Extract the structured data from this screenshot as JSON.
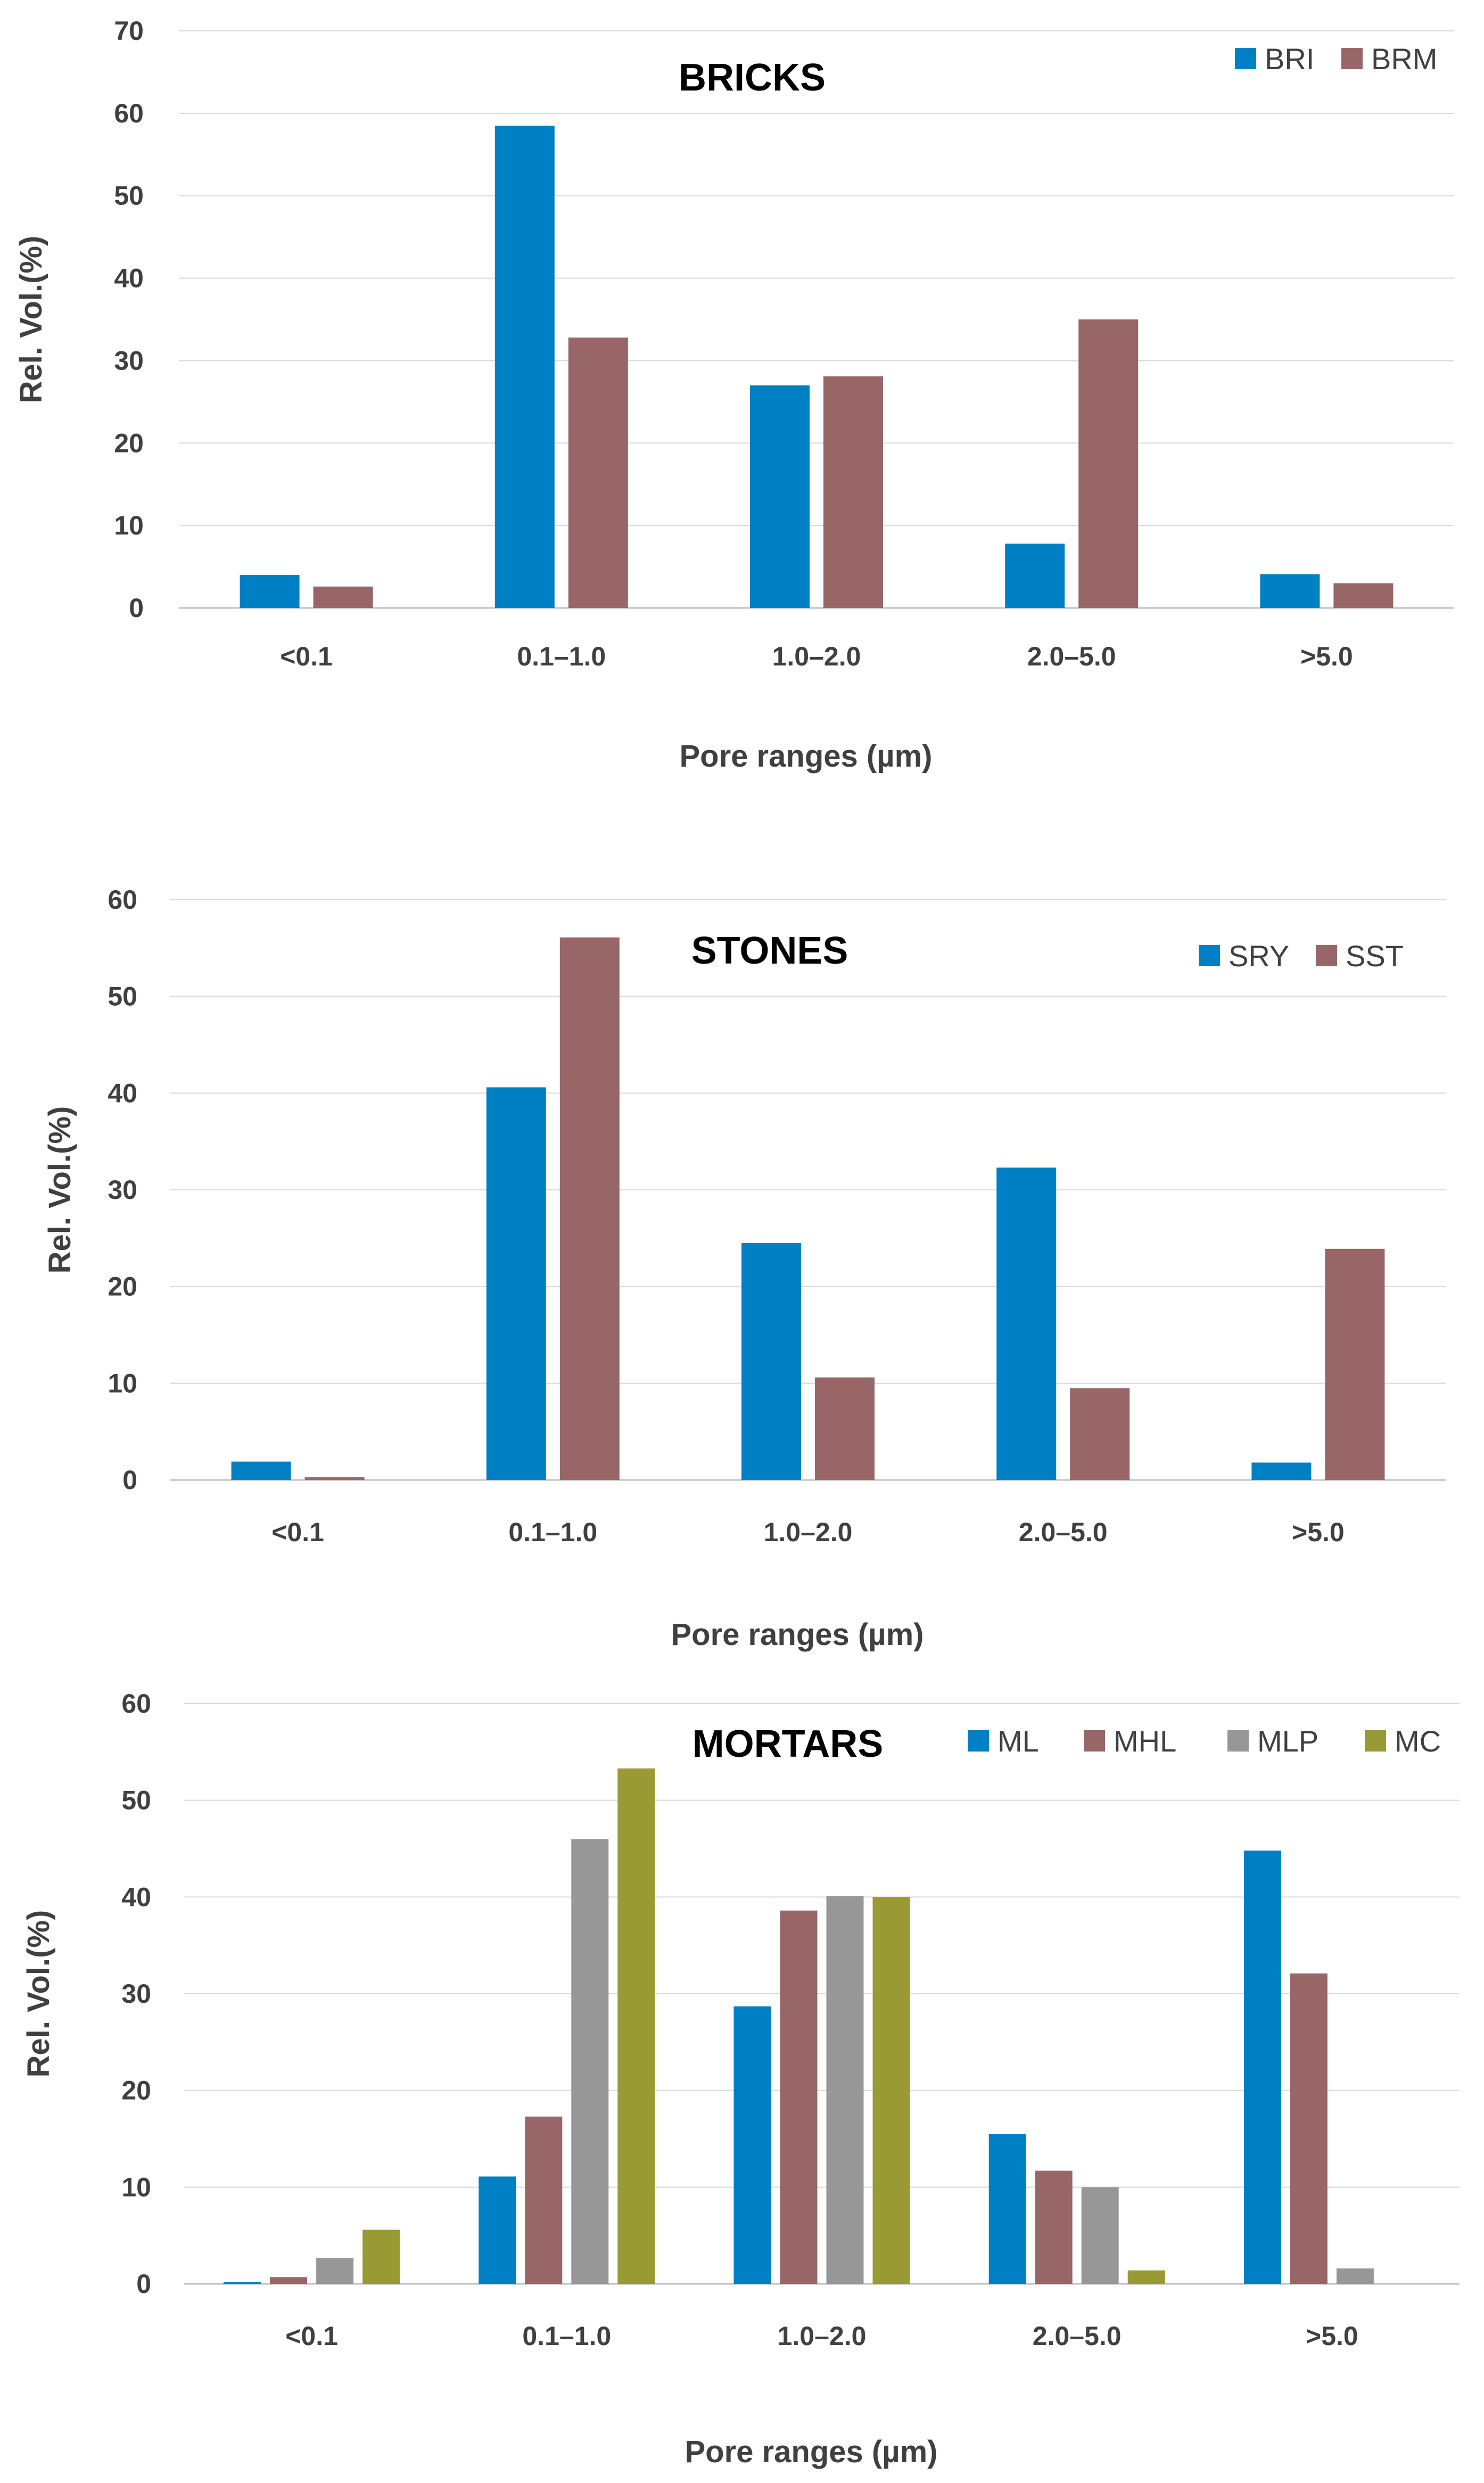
{
  "colors": {
    "blue": "#0080c4",
    "rose": "#986666",
    "gray": "#979797",
    "olive": "#9a9a35"
  },
  "chart_data": [
    {
      "type": "bar",
      "title": "BRICKS",
      "categories": [
        "<0.1",
        "0.1–1.0",
        "1.0–2.0",
        "2.0–5.0",
        ">5.0"
      ],
      "series": [
        {
          "name": "BRI",
          "values": [
            4,
            58.5,
            27,
            7.8,
            4.1
          ],
          "color": "#0080c4"
        },
        {
          "name": "BRM",
          "values": [
            2.6,
            32.8,
            28.1,
            35,
            3
          ]
        }
      ],
      "xlabel": "Pore ranges (µm)",
      "ylabel": "Rel. Vol.(%)",
      "ylim": [
        0,
        70
      ],
      "yticks": [
        0,
        10,
        20,
        30,
        40,
        50,
        60,
        70
      ],
      "legend": "top-right",
      "grid": true
    },
    {
      "type": "bar",
      "title": "STONES",
      "categories": [
        "<0.1",
        "0.1–1.0",
        "1.0–2.0",
        "2.0–5.0",
        ">5.0"
      ],
      "series": [
        {
          "name": "SRY",
          "values": [
            1.9,
            40.6,
            24.5,
            32.3,
            1.8
          ]
        },
        {
          "name": "SST",
          "values": [
            0.3,
            56.1,
            10.6,
            9.5,
            23.9
          ]
        }
      ],
      "xlabel": "Pore ranges (µm)",
      "ylabel": "Rel. Vol.(%)",
      "ylim": [
        0,
        60
      ],
      "yticks": [
        0,
        10,
        20,
        30,
        40,
        50,
        60
      ],
      "legend": "top-right",
      "grid": true
    },
    {
      "type": "bar",
      "title": "MORTARS",
      "categories": [
        "<0.1",
        "0.1–1.0",
        "1.0–2.0",
        "2.0–5.0",
        ">5.0"
      ],
      "series": [
        {
          "name": "ML",
          "values": [
            0.2,
            11.1,
            28.7,
            15.5,
            44.8
          ]
        },
        {
          "name": "MHL",
          "values": [
            0.7,
            17.3,
            38.6,
            11.7,
            32.1
          ]
        },
        {
          "name": "MLP",
          "values": [
            2.7,
            46,
            40.1,
            10,
            1.6
          ]
        },
        {
          "name": "MC",
          "values": [
            5.6,
            53.3,
            40,
            1.4,
            0
          ]
        }
      ],
      "xlabel": "Pore ranges (µm)",
      "ylabel": "Rel. Vol.(%)",
      "ylim": [
        0,
        60
      ],
      "yticks": [
        0,
        10,
        20,
        30,
        40,
        50,
        60
      ],
      "legend": "top-right",
      "grid": true
    }
  ]
}
